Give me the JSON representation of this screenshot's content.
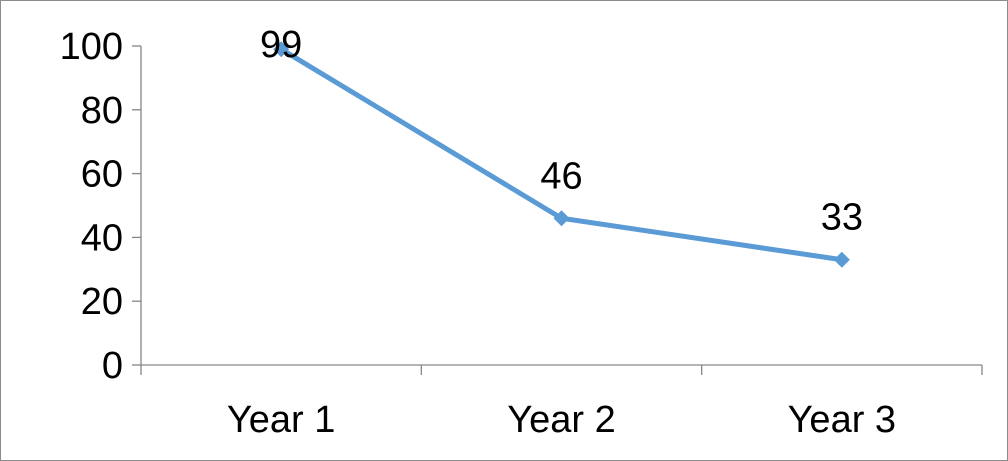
{
  "chart_data": {
    "type": "line",
    "title": "",
    "xlabel": "",
    "ylabel": "",
    "categories": [
      "Year 1",
      "Year 2",
      "Year 3"
    ],
    "series": [
      {
        "values": [
          99,
          46,
          33
        ]
      }
    ],
    "data_labels": [
      "99",
      "46",
      "33"
    ],
    "y_ticks": [
      0,
      20,
      40,
      60,
      80,
      100
    ],
    "y_tick_labels": [
      "0",
      "20",
      "40",
      "60",
      "80",
      "100"
    ],
    "ylim": [
      0,
      100
    ],
    "grid": false,
    "legend": "none",
    "marker": "diamond",
    "colors": {
      "series_line": "#5B9BD5",
      "series_marker": "#5B9BD5",
      "axis": "#868686",
      "text": "#000000"
    }
  }
}
